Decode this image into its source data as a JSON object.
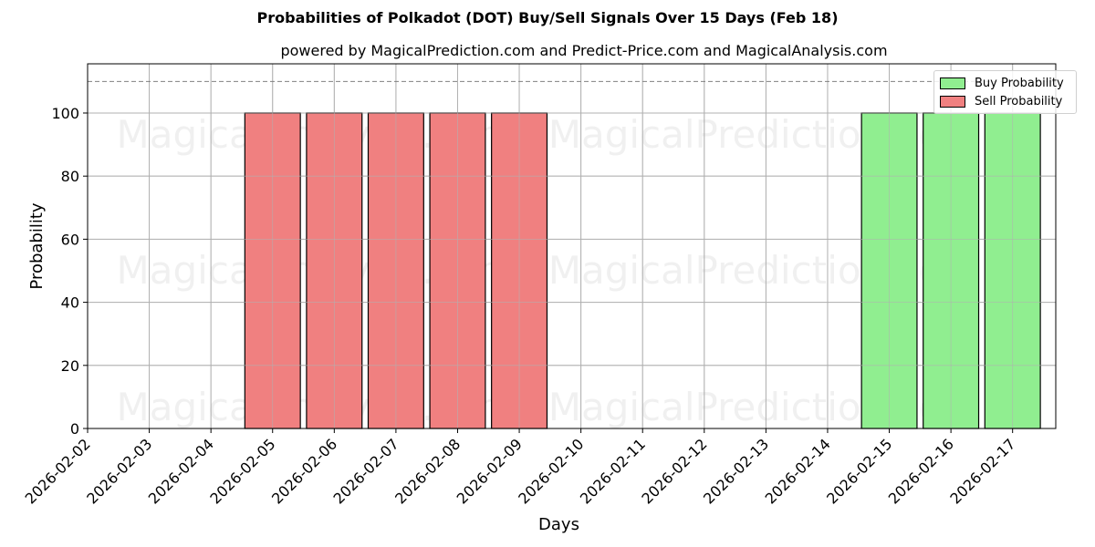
{
  "title": "Probabilities of Polkadot (DOT) Buy/Sell Signals Over 15 Days (Feb 18)",
  "subtitle": "powered by MagicalPrediction.com and Predict-Price.com and MagicalAnalysis.com",
  "watermarks": [
    "MagicalAnalysis.com",
    "MagicalPrediction.com"
  ],
  "legend": {
    "buy_label": "Buy Probability",
    "sell_label": "Sell Probability"
  },
  "colors": {
    "buy": "#90ee90",
    "sell": "#f08080",
    "grid": "#b0b0b0",
    "threshold": "#808080"
  },
  "chart_data": {
    "type": "bar",
    "title": "Probabilities of Polkadot (DOT) Buy/Sell Signals Over 15 Days (Feb 18)",
    "subtitle": "powered by MagicalPrediction.com and Predict-Price.com and MagicalAnalysis.com",
    "xlabel": "Days",
    "ylabel": "Probability",
    "ylim": [
      0,
      115.6
    ],
    "yticks": [
      0,
      20,
      40,
      60,
      80,
      100
    ],
    "grid": true,
    "legend_position": "upper right",
    "threshold_line": 110,
    "categories": [
      "2026-02-02",
      "2026-02-03",
      "2026-02-04",
      "2026-02-05",
      "2026-02-06",
      "2026-02-07",
      "2026-02-08",
      "2026-02-09",
      "2026-02-10",
      "2026-02-11",
      "2026-02-12",
      "2026-02-13",
      "2026-02-14",
      "2026-02-15",
      "2026-02-16",
      "2026-02-17"
    ],
    "series": [
      {
        "name": "Buy Probability",
        "color": "#90ee90",
        "values": [
          0,
          0,
          0,
          0,
          0,
          0,
          0,
          0,
          0,
          0,
          0,
          0,
          0,
          100,
          100,
          100
        ]
      },
      {
        "name": "Sell Probability",
        "color": "#f08080",
        "values": [
          0,
          0,
          0,
          100,
          100,
          100,
          100,
          100,
          0,
          0,
          0,
          0,
          0,
          0,
          0,
          0
        ]
      }
    ]
  }
}
